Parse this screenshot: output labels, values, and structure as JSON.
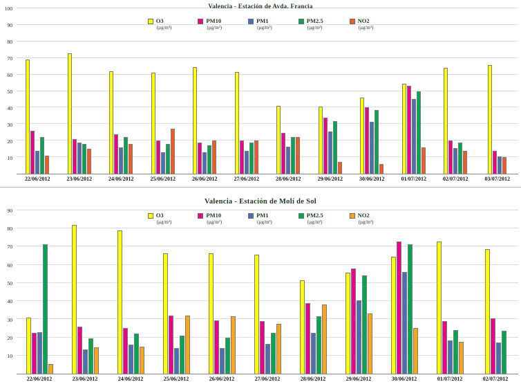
{
  "chart_data": [
    {
      "type": "bar",
      "title": "Valencia -  Estación de Avda. Francia",
      "unit_label": "(µg/m³)",
      "ylim": [
        0,
        100
      ],
      "ytick_step": 10,
      "grid": true,
      "legend_position": "top-center-inside",
      "categories": [
        "22/06/2012",
        "23/06/2012",
        "24/06/2012",
        "25/06/2012",
        "26/06/2012",
        "27/06/2012",
        "28/06/2012",
        "29/06/2012",
        "30/06/2012",
        "01/07/2012",
        "02/07/2012",
        "03/07/2012"
      ],
      "series": [
        {
          "name": "O3",
          "unit": "(µg/m³)",
          "color": "#FFFF00",
          "values": [
            69,
            73,
            62,
            61,
            64.5,
            61.5,
            41,
            40.5,
            46,
            54.5,
            64,
            65.5
          ]
        },
        {
          "name": "PM10",
          "unit": "(µg/m³)",
          "color": "#EC008C",
          "values": [
            26,
            21,
            24,
            20,
            19,
            20,
            24.5,
            34,
            40,
            53,
            20,
            14
          ]
        },
        {
          "name": "PM1",
          "unit": "(µg/m³)",
          "color": "#4A6FB5",
          "values": [
            14,
            19,
            16,
            13,
            13,
            14,
            16.5,
            25.5,
            31.5,
            45,
            15.5,
            10.5
          ]
        },
        {
          "name": "PM2.5",
          "unit": "(µg/m³)",
          "color": "#00A651",
          "values": [
            22,
            18,
            22,
            18,
            17,
            19,
            22,
            32,
            38.5,
            50,
            19,
            0
          ]
        },
        {
          "name": "NO2",
          "unit": "(µg/m³)",
          "color": "#F15A24",
          "values": [
            11,
            15,
            18,
            27,
            20,
            20,
            22,
            7,
            6,
            16,
            14,
            10
          ]
        }
      ]
    },
    {
      "type": "bar",
      "title": "Valencia - Estación de Molí de Sol",
      "unit_label": "(µg/m³)",
      "ylim": [
        0,
        90
      ],
      "ytick_step": 10,
      "grid": true,
      "legend_position": "top-center-inside",
      "categories": [
        "22/06/2012",
        "23/06/2012",
        "24/06/2012",
        "25/06/2012",
        "26/06/2012",
        "27/06/2012",
        "28/06/2012",
        "29/06/2012",
        "30/06/2012",
        "01/07/2012",
        "02/07/2012"
      ],
      "series": [
        {
          "name": "O3",
          "unit": "(µg/m³)",
          "color": "#FFFF00",
          "values": [
            31,
            82,
            79,
            66.5,
            66.5,
            65.5,
            51.5,
            55.5,
            64.5,
            73,
            68.5
          ]
        },
        {
          "name": "PM10",
          "unit": "(µg/m³)",
          "color": "#EC008C",
          "values": [
            22.5,
            26,
            25,
            32,
            29.5,
            29,
            39,
            58,
            73,
            29,
            30.5
          ]
        },
        {
          "name": "PM1",
          "unit": "(µg/m³)",
          "color": "#4A6FB5",
          "values": [
            23,
            13.5,
            16,
            14,
            14,
            16.5,
            22.5,
            40.5,
            56,
            18.5,
            17
          ]
        },
        {
          "name": "PM2.5",
          "unit": "(µg/m³)",
          "color": "#00A651",
          "values": [
            71.5,
            19.5,
            22,
            21,
            20,
            22.5,
            31.5,
            54,
            71.5,
            24,
            23.5
          ]
        },
        {
          "name": "NO2",
          "unit": "(µg/m³)",
          "color": "#F9A61A",
          "values": [
            5.5,
            14.5,
            15,
            32,
            31.5,
            27.5,
            38,
            33,
            25,
            17.5,
            0
          ]
        }
      ]
    }
  ]
}
